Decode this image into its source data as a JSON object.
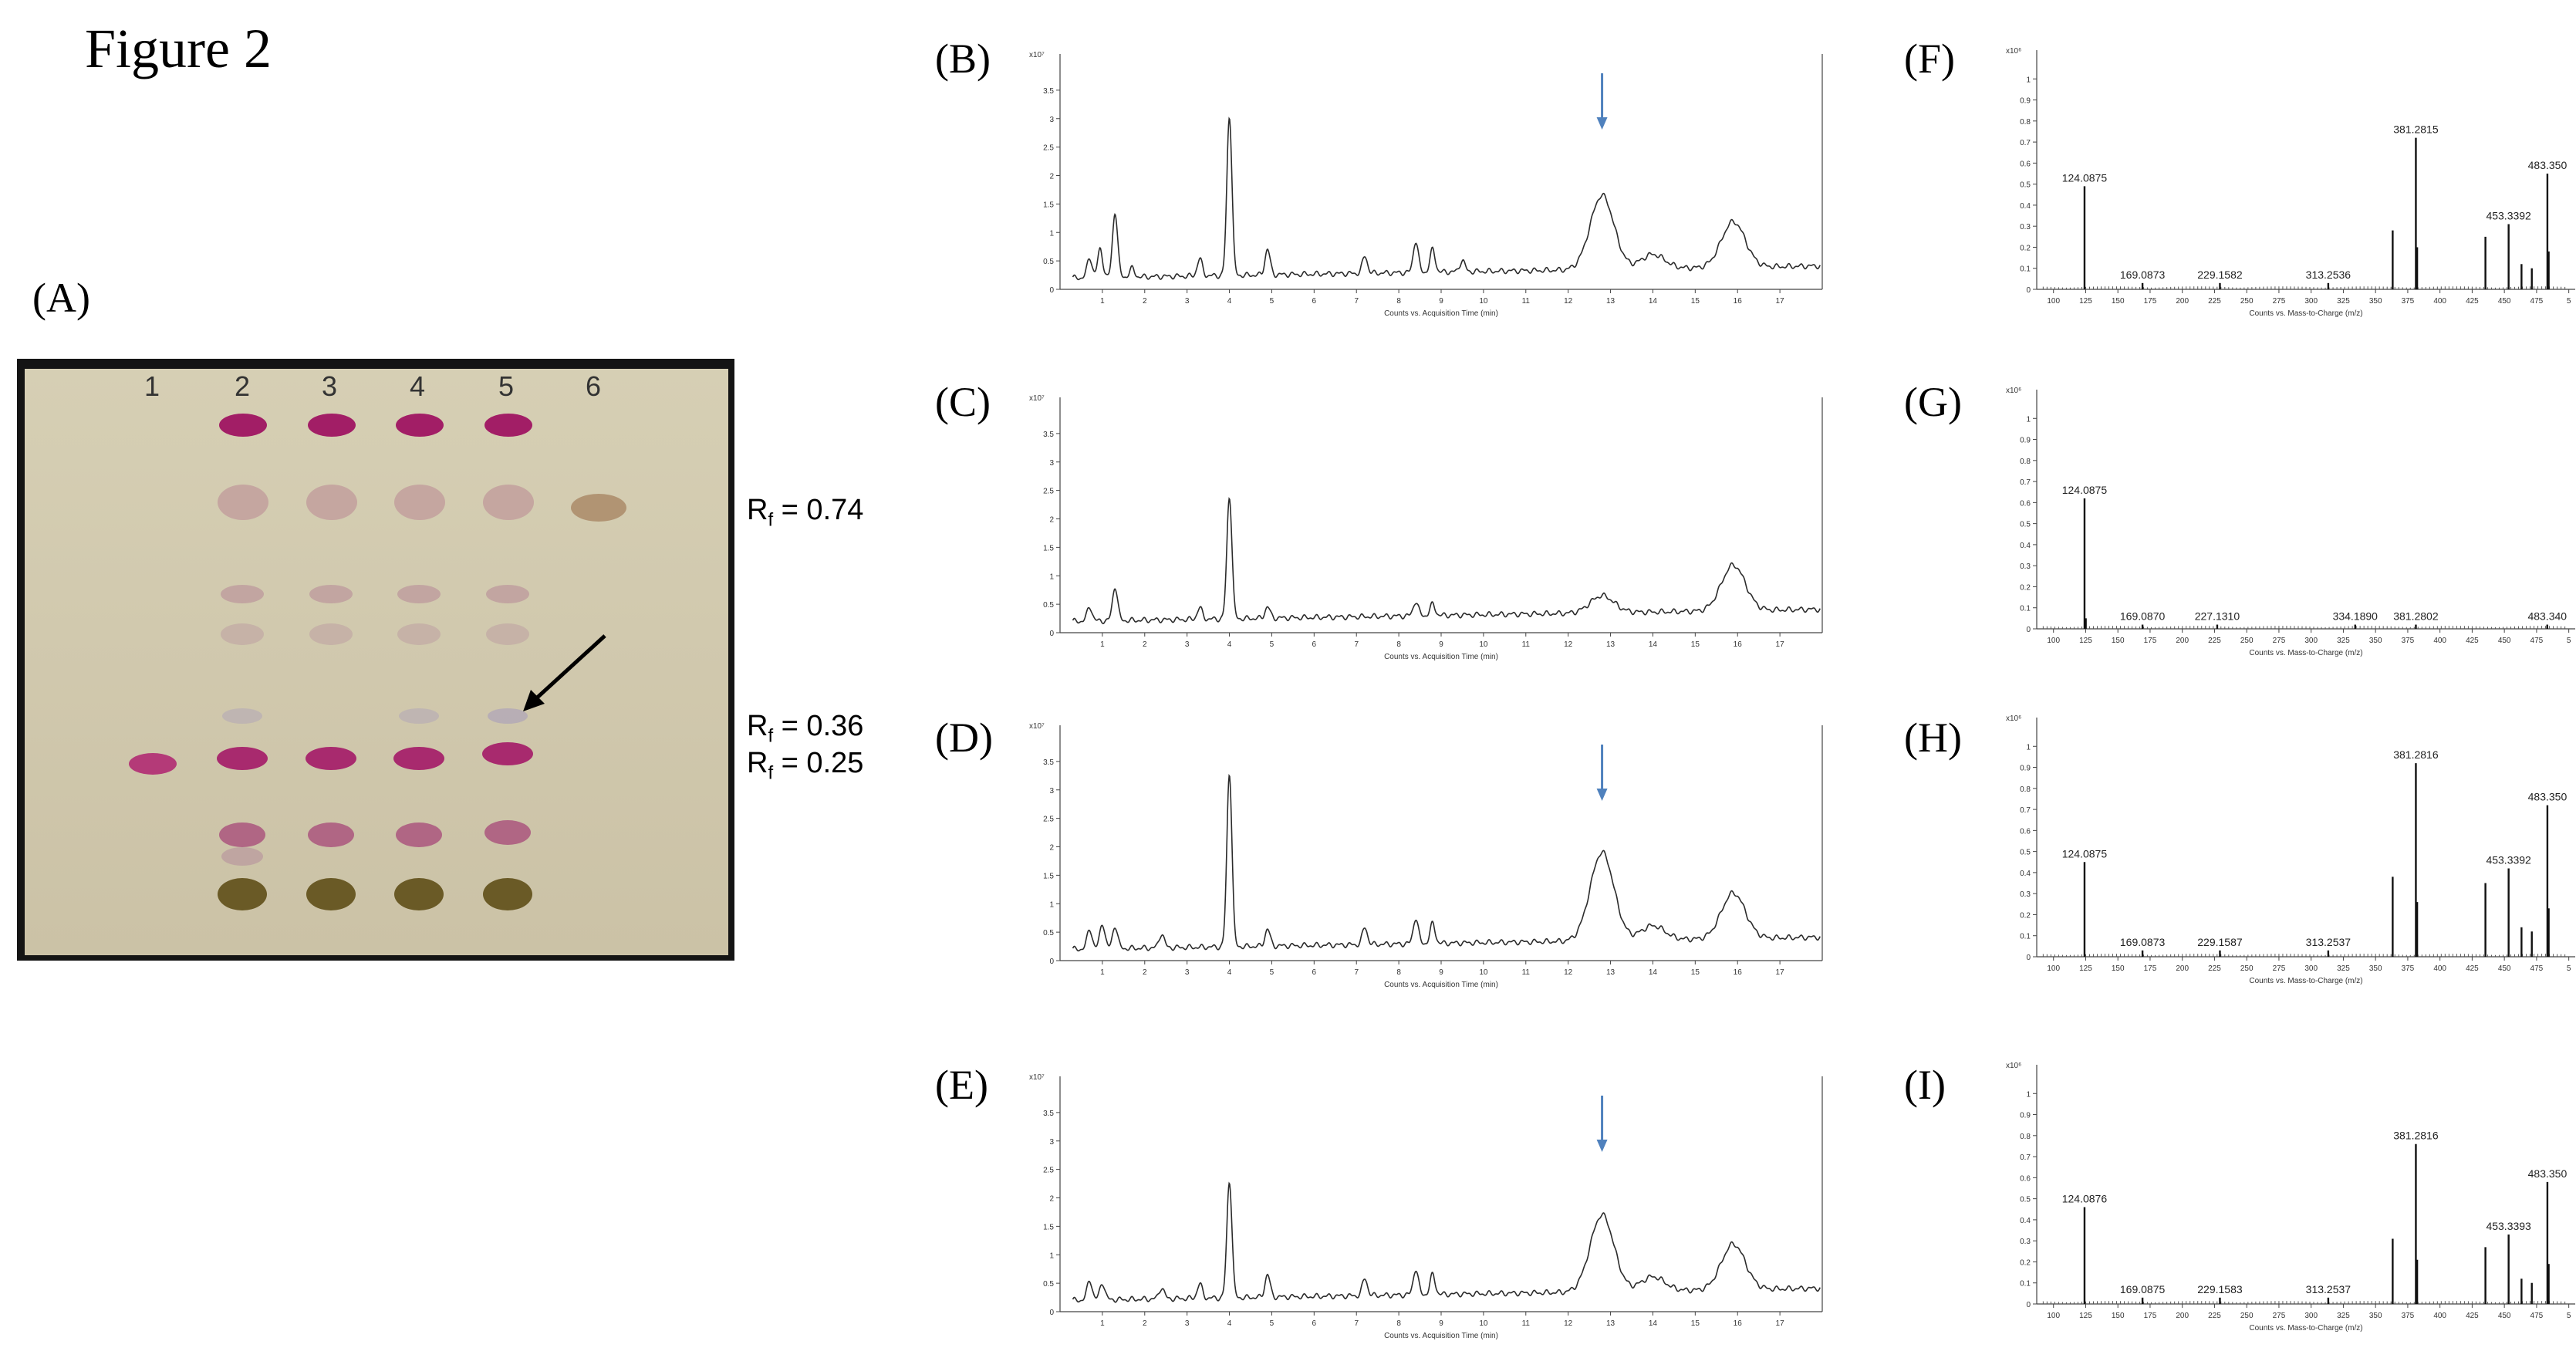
{
  "figure_title": "Figure 2",
  "panels": {
    "A": "(A)",
    "B": "(B)",
    "C": "(C)",
    "D": "(D)",
    "E": "(E)",
    "F": "(F)",
    "G": "(G)",
    "H": "(H)",
    "I": "(I)"
  },
  "tlc": {
    "lanes": [
      "1",
      "2",
      "3",
      "4",
      "5",
      "6"
    ],
    "rf_labels": [
      {
        "prefix": "R",
        "sub": "f",
        "value": " = 0.74"
      },
      {
        "prefix": "R",
        "sub": "f",
        "value": " = 0.36"
      },
      {
        "prefix": "R",
        "sub": "f",
        "value": " = 0.25"
      }
    ]
  },
  "chart_data": [
    {
      "type": "line",
      "panel": "B",
      "y_scale_label": "x10⁷",
      "xlabel": "Counts vs. Acquisition Time (min)",
      "xlim": [
        0,
        18
      ],
      "ylim": [
        0,
        4
      ],
      "x_ticks": [
        "1",
        "2",
        "3",
        "4",
        "5",
        "6",
        "7",
        "8",
        "9",
        "10",
        "11",
        "12",
        "13",
        "14",
        "15",
        "16",
        "17"
      ],
      "y_ticks": [
        "0",
        "0.5",
        "1",
        "1.5",
        "2",
        "2.5",
        "3",
        "3.5"
      ],
      "baseline": 0.2,
      "peaks": [
        [
          0.7,
          0.55
        ],
        [
          0.95,
          0.7
        ],
        [
          1.3,
          1.35
        ],
        [
          1.7,
          0.35
        ],
        [
          3.3,
          0.5
        ],
        [
          4.0,
          3.0
        ],
        [
          4.9,
          0.65
        ],
        [
          7.2,
          0.5
        ],
        [
          8.4,
          0.75
        ],
        [
          8.8,
          0.6
        ],
        [
          9.5,
          0.4
        ],
        [
          12.8,
          1.5
        ],
        [
          14.0,
          0.45
        ],
        [
          15.9,
          1.0
        ]
      ],
      "arrow_at": 12.8
    },
    {
      "type": "line",
      "panel": "C",
      "y_scale_label": "x10⁷",
      "xlabel": "Counts vs. Acquisition Time (min)",
      "xlim": [
        0,
        18
      ],
      "ylim": [
        0,
        4
      ],
      "x_ticks": [
        "1",
        "2",
        "3",
        "4",
        "5",
        "6",
        "7",
        "8",
        "9",
        "10",
        "11",
        "12",
        "13",
        "14",
        "15",
        "16",
        "17"
      ],
      "y_ticks": [
        "0",
        "0.5",
        "1",
        "1.5",
        "2",
        "2.5",
        "3",
        "3.5"
      ],
      "baseline": 0.2,
      "peaks": [
        [
          0.7,
          0.45
        ],
        [
          1.3,
          0.8
        ],
        [
          3.3,
          0.4
        ],
        [
          4.0,
          2.35
        ],
        [
          4.9,
          0.4
        ],
        [
          8.4,
          0.45
        ],
        [
          8.8,
          0.4
        ],
        [
          12.8,
          0.5
        ],
        [
          15.9,
          1.0
        ]
      ],
      "arrow_at": null
    },
    {
      "type": "line",
      "panel": "D",
      "y_scale_label": "x10⁷",
      "xlabel": "Counts vs. Acquisition Time (min)",
      "xlim": [
        0,
        18
      ],
      "ylim": [
        0,
        4
      ],
      "x_ticks": [
        "1",
        "2",
        "3",
        "4",
        "5",
        "6",
        "7",
        "8",
        "9",
        "10",
        "11",
        "12",
        "13",
        "14",
        "15",
        "16",
        "17"
      ],
      "y_ticks": [
        "0",
        "0.5",
        "1",
        "1.5",
        "2",
        "2.5",
        "3",
        "3.5"
      ],
      "baseline": 0.2,
      "peaks": [
        [
          0.7,
          0.55
        ],
        [
          1.0,
          0.65
        ],
        [
          1.3,
          0.6
        ],
        [
          2.4,
          0.45
        ],
        [
          4.0,
          3.25
        ],
        [
          4.9,
          0.5
        ],
        [
          7.2,
          0.5
        ],
        [
          8.4,
          0.65
        ],
        [
          8.8,
          0.55
        ],
        [
          12.8,
          1.75
        ],
        [
          14.0,
          0.45
        ],
        [
          15.9,
          1.0
        ]
      ],
      "arrow_at": 12.8
    },
    {
      "type": "line",
      "panel": "E",
      "y_scale_label": "x10⁷",
      "xlabel": "Counts vs. Acquisition Time (min)",
      "xlim": [
        0,
        18
      ],
      "ylim": [
        0,
        4
      ],
      "x_ticks": [
        "1",
        "2",
        "3",
        "4",
        "5",
        "6",
        "7",
        "8",
        "9",
        "10",
        "11",
        "12",
        "13",
        "14",
        "15",
        "16",
        "17"
      ],
      "y_ticks": [
        "0",
        "0.5",
        "1",
        "1.5",
        "2",
        "2.5",
        "3",
        "3.5"
      ],
      "baseline": 0.2,
      "peaks": [
        [
          0.7,
          0.55
        ],
        [
          1.0,
          0.5
        ],
        [
          2.4,
          0.4
        ],
        [
          3.3,
          0.45
        ],
        [
          4.0,
          2.25
        ],
        [
          4.9,
          0.6
        ],
        [
          7.2,
          0.5
        ],
        [
          8.4,
          0.65
        ],
        [
          8.8,
          0.55
        ],
        [
          12.8,
          1.55
        ],
        [
          14.0,
          0.45
        ],
        [
          15.9,
          1.0
        ]
      ],
      "arrow_at": 12.8
    },
    {
      "type": "bar",
      "panel": "F",
      "y_scale_label": "x10⁶",
      "xlabel": "Counts vs. Mass-to-Charge (m/z)",
      "xlim": [
        87,
        505
      ],
      "ylim": [
        0,
        1.1
      ],
      "x_ticks": [
        "100",
        "125",
        "150",
        "175",
        "200",
        "225",
        "250",
        "275",
        "300",
        "325",
        "350",
        "375",
        "400",
        "425",
        "450",
        "475",
        "5"
      ],
      "y_ticks": [
        "0",
        "0.1",
        "0.2",
        "0.3",
        "0.4",
        "0.5",
        "0.6",
        "0.7",
        "0.8",
        "0.9",
        "1"
      ],
      "sticks": [
        [
          124.1,
          0.49
        ],
        [
          169.1,
          0.03
        ],
        [
          229.2,
          0.03
        ],
        [
          313.3,
          0.03
        ],
        [
          363.3,
          0.28
        ],
        [
          381.3,
          0.72
        ],
        [
          382.3,
          0.2
        ],
        [
          435.3,
          0.25
        ],
        [
          453.3,
          0.31
        ],
        [
          463.3,
          0.12
        ],
        [
          471.3,
          0.1
        ],
        [
          483.4,
          0.55
        ],
        [
          484.4,
          0.18
        ]
      ],
      "peak_labels": [
        {
          "text": "124.0875",
          "x": 124.1,
          "y": 0.49
        },
        {
          "text": "169.0873",
          "x": 169.1,
          "y": 0.03
        },
        {
          "text": "229.1582",
          "x": 229.2,
          "y": 0.03
        },
        {
          "text": "313.2536",
          "x": 313.3,
          "y": 0.03
        },
        {
          "text": "381.2815",
          "x": 381.3,
          "y": 0.72
        },
        {
          "text": "453.3392",
          "x": 453.3,
          "y": 0.31
        },
        {
          "text": "483.350",
          "x": 483.4,
          "y": 0.55
        }
      ]
    },
    {
      "type": "bar",
      "panel": "G",
      "y_scale_label": "x10⁶",
      "xlabel": "Counts vs. Mass-to-Charge (m/z)",
      "xlim": [
        87,
        505
      ],
      "ylim": [
        0,
        1.1
      ],
      "x_ticks": [
        "100",
        "125",
        "150",
        "175",
        "200",
        "225",
        "250",
        "275",
        "300",
        "325",
        "350",
        "375",
        "400",
        "425",
        "450",
        "475",
        "5"
      ],
      "y_ticks": [
        "0",
        "0.1",
        "0.2",
        "0.3",
        "0.4",
        "0.5",
        "0.6",
        "0.7",
        "0.8",
        "0.9",
        "1"
      ],
      "sticks": [
        [
          124.1,
          0.62
        ],
        [
          125.1,
          0.05
        ],
        [
          169.1,
          0.02
        ],
        [
          227.1,
          0.02
        ],
        [
          334.2,
          0.02
        ],
        [
          381.3,
          0.02
        ],
        [
          483.3,
          0.02
        ]
      ],
      "peak_labels": [
        {
          "text": "124.0875",
          "x": 124.1,
          "y": 0.62
        },
        {
          "text": "169.0870",
          "x": 169.1,
          "y": 0.02
        },
        {
          "text": "227.1310",
          "x": 227.1,
          "y": 0.02
        },
        {
          "text": "334.1890",
          "x": 334.2,
          "y": 0.02
        },
        {
          "text": "381.2802",
          "x": 381.3,
          "y": 0.02
        },
        {
          "text": "483.340",
          "x": 483.3,
          "y": 0.02
        }
      ]
    },
    {
      "type": "bar",
      "panel": "H",
      "y_scale_label": "x10⁶",
      "xlabel": "Counts vs. Mass-to-Charge (m/z)",
      "xlim": [
        87,
        505
      ],
      "ylim": [
        0,
        1.1
      ],
      "x_ticks": [
        "100",
        "125",
        "150",
        "175",
        "200",
        "225",
        "250",
        "275",
        "300",
        "325",
        "350",
        "375",
        "400",
        "425",
        "450",
        "475",
        "5"
      ],
      "y_ticks": [
        "0",
        "0.1",
        "0.2",
        "0.3",
        "0.4",
        "0.5",
        "0.6",
        "0.7",
        "0.8",
        "0.9",
        "1"
      ],
      "sticks": [
        [
          124.1,
          0.45
        ],
        [
          169.1,
          0.03
        ],
        [
          229.2,
          0.03
        ],
        [
          313.3,
          0.03
        ],
        [
          363.3,
          0.38
        ],
        [
          381.3,
          0.92
        ],
        [
          382.3,
          0.26
        ],
        [
          435.3,
          0.35
        ],
        [
          453.3,
          0.42
        ],
        [
          463.3,
          0.14
        ],
        [
          471.3,
          0.12
        ],
        [
          483.4,
          0.72
        ],
        [
          484.4,
          0.23
        ]
      ],
      "peak_labels": [
        {
          "text": "124.0875",
          "x": 124.1,
          "y": 0.45
        },
        {
          "text": "169.0873",
          "x": 169.1,
          "y": 0.03
        },
        {
          "text": "229.1587",
          "x": 229.2,
          "y": 0.03
        },
        {
          "text": "313.2537",
          "x": 313.3,
          "y": 0.03
        },
        {
          "text": "381.2816",
          "x": 381.3,
          "y": 0.92
        },
        {
          "text": "453.3392",
          "x": 453.3,
          "y": 0.42
        },
        {
          "text": "483.350",
          "x": 483.4,
          "y": 0.72
        }
      ]
    },
    {
      "type": "bar",
      "panel": "I",
      "y_scale_label": "x10⁶",
      "xlabel": "Counts vs. Mass-to-Charge (m/z)",
      "xlim": [
        87,
        505
      ],
      "ylim": [
        0,
        1.1
      ],
      "x_ticks": [
        "100",
        "125",
        "150",
        "175",
        "200",
        "225",
        "250",
        "275",
        "300",
        "325",
        "350",
        "375",
        "400",
        "425",
        "450",
        "475",
        "5"
      ],
      "y_ticks": [
        "0",
        "0.1",
        "0.2",
        "0.3",
        "0.4",
        "0.5",
        "0.6",
        "0.7",
        "0.8",
        "0.9",
        "1"
      ],
      "sticks": [
        [
          124.1,
          0.46
        ],
        [
          169.1,
          0.03
        ],
        [
          229.2,
          0.03
        ],
        [
          313.3,
          0.03
        ],
        [
          363.3,
          0.31
        ],
        [
          381.3,
          0.76
        ],
        [
          382.3,
          0.21
        ],
        [
          435.3,
          0.27
        ],
        [
          453.3,
          0.33
        ],
        [
          463.3,
          0.12
        ],
        [
          471.3,
          0.1
        ],
        [
          483.4,
          0.58
        ],
        [
          484.4,
          0.19
        ]
      ],
      "peak_labels": [
        {
          "text": "124.0876",
          "x": 124.1,
          "y": 0.46
        },
        {
          "text": "169.0875",
          "x": 169.1,
          "y": 0.03
        },
        {
          "text": "229.1583",
          "x": 229.2,
          "y": 0.03
        },
        {
          "text": "313.2537",
          "x": 313.3,
          "y": 0.03
        },
        {
          "text": "381.2816",
          "x": 381.3,
          "y": 0.76
        },
        {
          "text": "453.3393",
          "x": 453.3,
          "y": 0.33
        },
        {
          "text": "483.350",
          "x": 483.4,
          "y": 0.58
        }
      ]
    }
  ]
}
